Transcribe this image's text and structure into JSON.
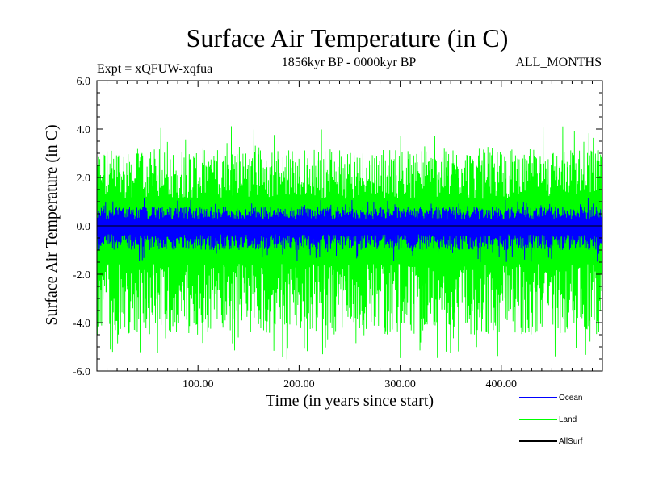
{
  "chart_data": {
    "type": "line",
    "title": "Surface Air Temperature (in C)",
    "subtitle": "1856kyr BP - 0000kyr BP",
    "experiment_label": "Expt = xQFUW-xqfua",
    "months_label": "ALL_MONTHS",
    "xlabel": "Time (in years since start)",
    "ylabel": "Surface Air Temperature (in C)",
    "xlim": [
      0,
      500
    ],
    "ylim": [
      -6.0,
      6.0
    ],
    "x_ticks": [
      100,
      200,
      300,
      400
    ],
    "x_tick_labels": [
      "100.00",
      "200.00",
      "300.00",
      "400.00"
    ],
    "y_ticks": [
      -6,
      -4,
      -2,
      0,
      2,
      4,
      6
    ],
    "y_tick_labels": [
      "-6.0",
      "-4.0",
      "-2.0",
      "0.0",
      "2.0",
      "4.0",
      "6.0"
    ],
    "series": [
      {
        "name": "Land",
        "color": "#00ff00",
        "amplitude_range": [
          -5.6,
          4.2
        ],
        "typical_range": [
          -4.5,
          3.2
        ]
      },
      {
        "name": "Ocean",
        "color": "#0000ff",
        "amplitude_range": [
          -1.5,
          1.2
        ],
        "typical_range": [
          -1.0,
          0.8
        ]
      },
      {
        "name": "AllSurf",
        "color": "#000000",
        "amplitude_range": [
          0.0,
          0.0
        ],
        "typical_range": [
          0.0,
          0.0
        ]
      }
    ],
    "legend": {
      "position": "bottom-right",
      "order": [
        "Ocean",
        "Land",
        "AllSurf"
      ]
    }
  }
}
